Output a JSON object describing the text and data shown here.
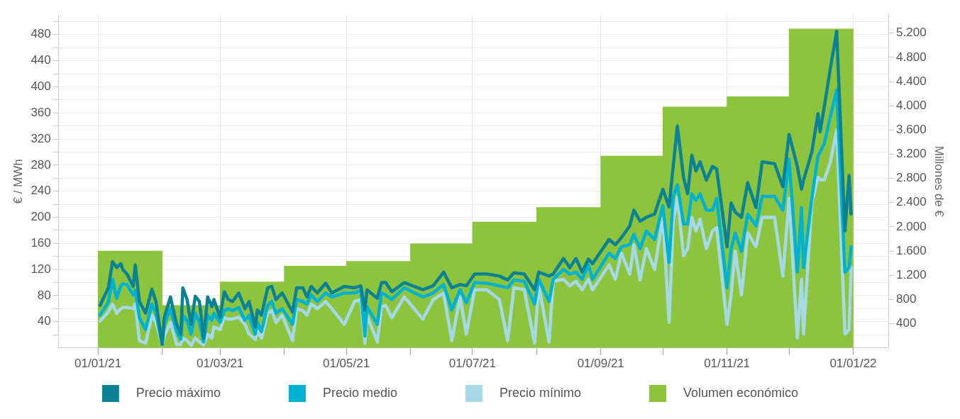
{
  "chart_data": {
    "type": "line",
    "ylabel": "€ / MWh",
    "y2label": "Millones de €",
    "legend": "bottom",
    "grid": true,
    "marker": "none",
    "line_style": "solid",
    "x": [
      "2021-01-02",
      "2021-01-06",
      "2021-01-08",
      "2021-01-10",
      "2021-01-12",
      "2021-01-13",
      "2021-01-15",
      "2021-01-18",
      "2021-01-19",
      "2021-01-21",
      "2021-01-24",
      "2021-01-27",
      "2021-01-29",
      "2021-02-01",
      "2021-02-02",
      "2021-02-05",
      "2021-02-08",
      "2021-02-10",
      "2021-02-11",
      "2021-02-13",
      "2021-02-15",
      "2021-02-17",
      "2021-02-19",
      "2021-02-21",
      "2021-02-23",
      "2021-02-25",
      "2021-02-26",
      "2021-03-01",
      "2021-03-03",
      "2021-03-05",
      "2021-03-07",
      "2021-03-10",
      "2021-03-13",
      "2021-03-15",
      "2021-03-18",
      "2021-03-19",
      "2021-03-21",
      "2021-03-24",
      "2021-03-26",
      "2021-03-28",
      "2021-03-31",
      "2021-04-05",
      "2021-04-07",
      "2021-04-10",
      "2021-04-12",
      "2021-04-14",
      "2021-04-17",
      "2021-04-21",
      "2021-04-24",
      "2021-04-30",
      "2021-05-05",
      "2021-05-08",
      "2021-05-10",
      "2021-05-11",
      "2021-05-16",
      "2021-05-18",
      "2021-05-20",
      "2021-05-23",
      "2021-05-29",
      "2021-06-07",
      "2021-06-12",
      "2021-06-17",
      "2021-06-21",
      "2021-06-25",
      "2021-06-28",
      "2021-07-02",
      "2021-07-08",
      "2021-07-14",
      "2021-07-18",
      "2021-07-21",
      "2021-07-26",
      "2021-07-31",
      "2021-08-02",
      "2021-08-07",
      "2021-08-09",
      "2021-08-14",
      "2021-08-17",
      "2021-08-20",
      "2021-08-23",
      "2021-08-26",
      "2021-08-28",
      "2021-09-05",
      "2021-09-08",
      "2021-09-11",
      "2021-09-15",
      "2021-09-17",
      "2021-09-20",
      "2021-09-23",
      "2021-09-27",
      "2021-10-01",
      "2021-10-04",
      "2021-10-06",
      "2021-10-08",
      "2021-10-11",
      "2021-10-13",
      "2021-10-15",
      "2021-10-17",
      "2021-10-19",
      "2021-10-22",
      "2021-10-25",
      "2021-10-27",
      "2021-11-01",
      "2021-11-03",
      "2021-11-05",
      "2021-11-08",
      "2021-11-11",
      "2021-11-15",
      "2021-11-18",
      "2021-11-24",
      "2021-11-28",
      "2021-12-01",
      "2021-12-05",
      "2021-12-07",
      "2021-12-08",
      "2021-12-12",
      "2021-12-15",
      "2021-12-16",
      "2021-12-18",
      "2021-12-21",
      "2021-12-24",
      "2021-12-28",
      "2021-12-30",
      "2021-12-31"
    ],
    "xlim": [
      "2020-12-13",
      "2022-01-18"
    ],
    "xticks": [
      {
        "value": "2021-01-01",
        "label": "01/01/21"
      },
      {
        "value": "2021-02-01",
        "label": null
      },
      {
        "value": "2021-03-01",
        "label": "01/03/21"
      },
      {
        "value": "2021-04-01",
        "label": null
      },
      {
        "value": "2021-05-01",
        "label": "01/05/21"
      },
      {
        "value": "2021-06-01",
        "label": null
      },
      {
        "value": "2021-07-01",
        "label": "01/07/21"
      },
      {
        "value": "2021-08-01",
        "label": null
      },
      {
        "value": "2021-09-01",
        "label": "01/09/21"
      },
      {
        "value": "2021-10-01",
        "label": null
      },
      {
        "value": "2021-11-01",
        "label": "01/11/21"
      },
      {
        "value": "2021-12-01",
        "label": null
      },
      {
        "value": "2022-01-01",
        "label": "01/01/22"
      }
    ],
    "ylim": [
      0,
      510
    ],
    "yticks": [
      {
        "value": 20,
        "label": null
      },
      40,
      {
        "value": 60,
        "label": null
      },
      80,
      {
        "value": 100,
        "label": null
      },
      120,
      {
        "value": 140,
        "label": null
      },
      160,
      {
        "value": 180,
        "label": null
      },
      200,
      {
        "value": 220,
        "label": null
      },
      240,
      {
        "value": 260,
        "label": null
      },
      280,
      {
        "value": 300,
        "label": null
      },
      320,
      {
        "value": 340,
        "label": null
      },
      360,
      {
        "value": 380,
        "label": null
      },
      400,
      {
        "value": 420,
        "label": null
      },
      440,
      {
        "value": 460,
        "label": null
      },
      480,
      {
        "value": 500,
        "label": null
      }
    ],
    "y2lim": [
      0,
      5500
    ],
    "y2ticks": [
      400,
      800,
      {
        "value": 1200,
        "label": "1.200"
      },
      {
        "value": 1600,
        "label": "1.600"
      },
      {
        "value": 2000,
        "label": "2.000"
      },
      {
        "value": 2400,
        "label": "2.400"
      },
      {
        "value": 2800,
        "label": "2.800"
      },
      {
        "value": 3200,
        "label": "3.200"
      },
      {
        "value": 3600,
        "label": "3.600"
      },
      {
        "value": 4000,
        "label": "4.000"
      },
      {
        "value": 4400,
        "label": "4.400"
      },
      {
        "value": 4800,
        "label": "4.800"
      },
      {
        "value": 5200,
        "label": "5.200"
      }
    ],
    "series": [
      {
        "name": "Precio máximo",
        "color": "#0a8294",
        "values": [
          65,
          92,
          132,
          123,
          129,
          120,
          113,
          94,
          127,
          71,
          53,
          90,
          71,
          5,
          46,
          78,
          36,
          21,
          92,
          74,
          36,
          79,
          71,
          15,
          78,
          63,
          74,
          46,
          86,
          74,
          71,
          84,
          60,
          71,
          32,
          58,
          50,
          92,
          94,
          74,
          84,
          55,
          92,
          92,
          78,
          94,
          84,
          99,
          84,
          94,
          92,
          95,
          58,
          89,
          76,
          100,
          100,
          86,
          100,
          89,
          95,
          116,
          92,
          97,
          95,
          113,
          113,
          110,
          104,
          115,
          113,
          89,
          116,
          110,
          113,
          137,
          123,
          137,
          116,
          136,
          129,
          166,
          158,
          169,
          187,
          211,
          194,
          200,
          205,
          243,
          216,
          278,
          340,
          261,
          236,
          295,
          271,
          285,
          257,
          278,
          274,
          155,
          222,
          208,
          200,
          253,
          215,
          285,
          282,
          247,
          327,
          278,
          243,
          257,
          300,
          359,
          331,
          369,
          429,
          485,
          179,
          264,
          205
        ]
      },
      {
        "name": "Precio medio",
        "color": "#00b2d2",
        "values": [
          50,
          70,
          105,
          76,
          95,
          98,
          97,
          81,
          88,
          46,
          28,
          67,
          53,
          5,
          36,
          60,
          25,
          13,
          50,
          42,
          21,
          53,
          39,
          9,
          50,
          42,
          53,
          39,
          57,
          60,
          57,
          62,
          42,
          50,
          21,
          39,
          25,
          65,
          71,
          53,
          60,
          36,
          74,
          71,
          67,
          81,
          71,
          84,
          78,
          84,
          84,
          88,
          18,
          63,
          36,
          84,
          81,
          74,
          92,
          78,
          84,
          97,
          58,
          89,
          69,
          100,
          99,
          95,
          92,
          104,
          102,
          67,
          105,
          71,
          105,
          120,
          113,
          116,
          105,
          127,
          105,
          145,
          137,
          155,
          158,
          174,
          152,
          179,
          166,
          218,
          131,
          232,
          250,
          190,
          190,
          236,
          226,
          236,
          211,
          211,
          229,
          92,
          152,
          176,
          148,
          205,
          187,
          232,
          232,
          211,
          289,
          116,
          215,
          123,
          229,
          295,
          300,
          313,
          355,
          395,
          116,
          123,
          155
        ]
      },
      {
        "name": "Precio mínimo",
        "color": "#a6d9e7",
        "values": [
          41,
          55,
          67,
          53,
          60,
          62,
          62,
          60,
          67,
          11,
          7,
          50,
          39,
          4,
          18,
          39,
          5,
          5,
          15,
          11,
          4,
          15,
          9,
          4,
          21,
          15,
          32,
          28,
          46,
          44,
          44,
          47,
          36,
          21,
          13,
          25,
          15,
          53,
          57,
          39,
          50,
          11,
          60,
          57,
          50,
          67,
          60,
          71,
          60,
          36,
          71,
          74,
          7,
          50,
          9,
          63,
          65,
          46,
          78,
          44,
          74,
          84,
          11,
          78,
          21,
          89,
          89,
          74,
          11,
          92,
          89,
          7,
          95,
          9,
          102,
          105,
          95,
          102,
          89,
          105,
          89,
          127,
          105,
          145,
          113,
          158,
          104,
          152,
          120,
          200,
          39,
          194,
          231,
          141,
          152,
          200,
          179,
          197,
          152,
          179,
          184,
          36,
          81,
          148,
          81,
          176,
          155,
          200,
          200,
          110,
          229,
          15,
          105,
          21,
          222,
          261,
          258,
          257,
          285,
          334,
          21,
          28,
          123
        ]
      },
      {
        "name": "Volumen económico",
        "type": "bar",
        "axis": "y2",
        "color": "#8cc43e",
        "x": [
          "2021-01-16",
          "2021-02-14",
          "2021-03-16",
          "2021-04-15",
          "2021-05-16",
          "2021-06-15",
          "2021-07-16",
          "2021-08-16",
          "2021-09-15",
          "2021-10-16",
          "2021-11-15",
          "2021-12-16"
        ],
        "values": [
          1600,
          700,
          1090,
          1350,
          1430,
          1720,
          2080,
          2320,
          3170,
          3980,
          4150,
          5270
        ]
      }
    ]
  }
}
